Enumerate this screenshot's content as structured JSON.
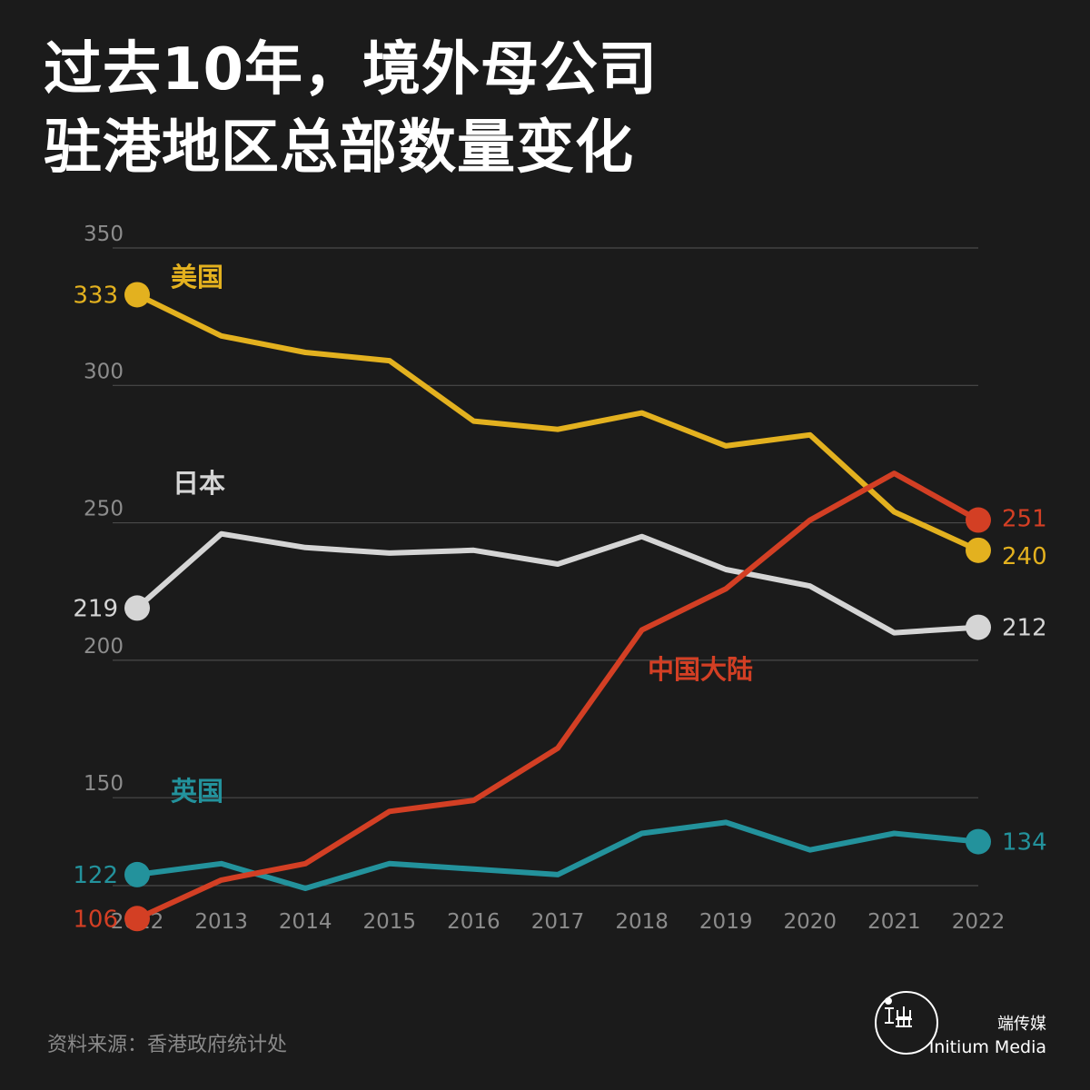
{
  "header": {
    "title_line1": "过去10年，境外母公司",
    "title_line2": "驻港地区总部数量变化"
  },
  "footer": {
    "source": "资料来源：香港政府统计处",
    "brand_cn": "端传媒",
    "brand_en": "Initium Media",
    "logo_icon": "initium-logo-icon"
  },
  "colors": {
    "background": "#1b1b1b",
    "grid": "#4a4a4a",
    "tick": "#8c8c8c",
    "美国": "#e3b11f",
    "日本": "#d5d5d5",
    "中国大陆": "#d33f24",
    "英国": "#23929c"
  },
  "chart_data": {
    "type": "line",
    "x": [
      "2012",
      "2013",
      "2014",
      "2015",
      "2016",
      "2017",
      "2018",
      "2019",
      "2020",
      "2021",
      "2022"
    ],
    "ylim": [
      118,
      350
    ],
    "yticks": [
      150,
      200,
      250,
      300,
      350
    ],
    "grid": true,
    "legend": "inline labels next to lines",
    "series": [
      {
        "name": "美国",
        "values": [
          333,
          318,
          312,
          309,
          287,
          284,
          290,
          278,
          282,
          254,
          240
        ],
        "start_label": "333",
        "end_label": "240"
      },
      {
        "name": "日本",
        "values": [
          219,
          246,
          241,
          239,
          240,
          235,
          245,
          233,
          227,
          210,
          212
        ],
        "start_label": "219",
        "end_label": "212"
      },
      {
        "name": "中国大陆",
        "values": [
          106,
          120,
          126,
          145,
          149,
          168,
          211,
          226,
          251,
          268,
          251
        ],
        "start_label": "106",
        "end_label": "251"
      },
      {
        "name": "英国",
        "values": [
          122,
          126,
          117,
          126,
          124,
          122,
          137,
          141,
          131,
          137,
          134
        ],
        "start_label": "122",
        "end_label": "134"
      }
    ]
  }
}
